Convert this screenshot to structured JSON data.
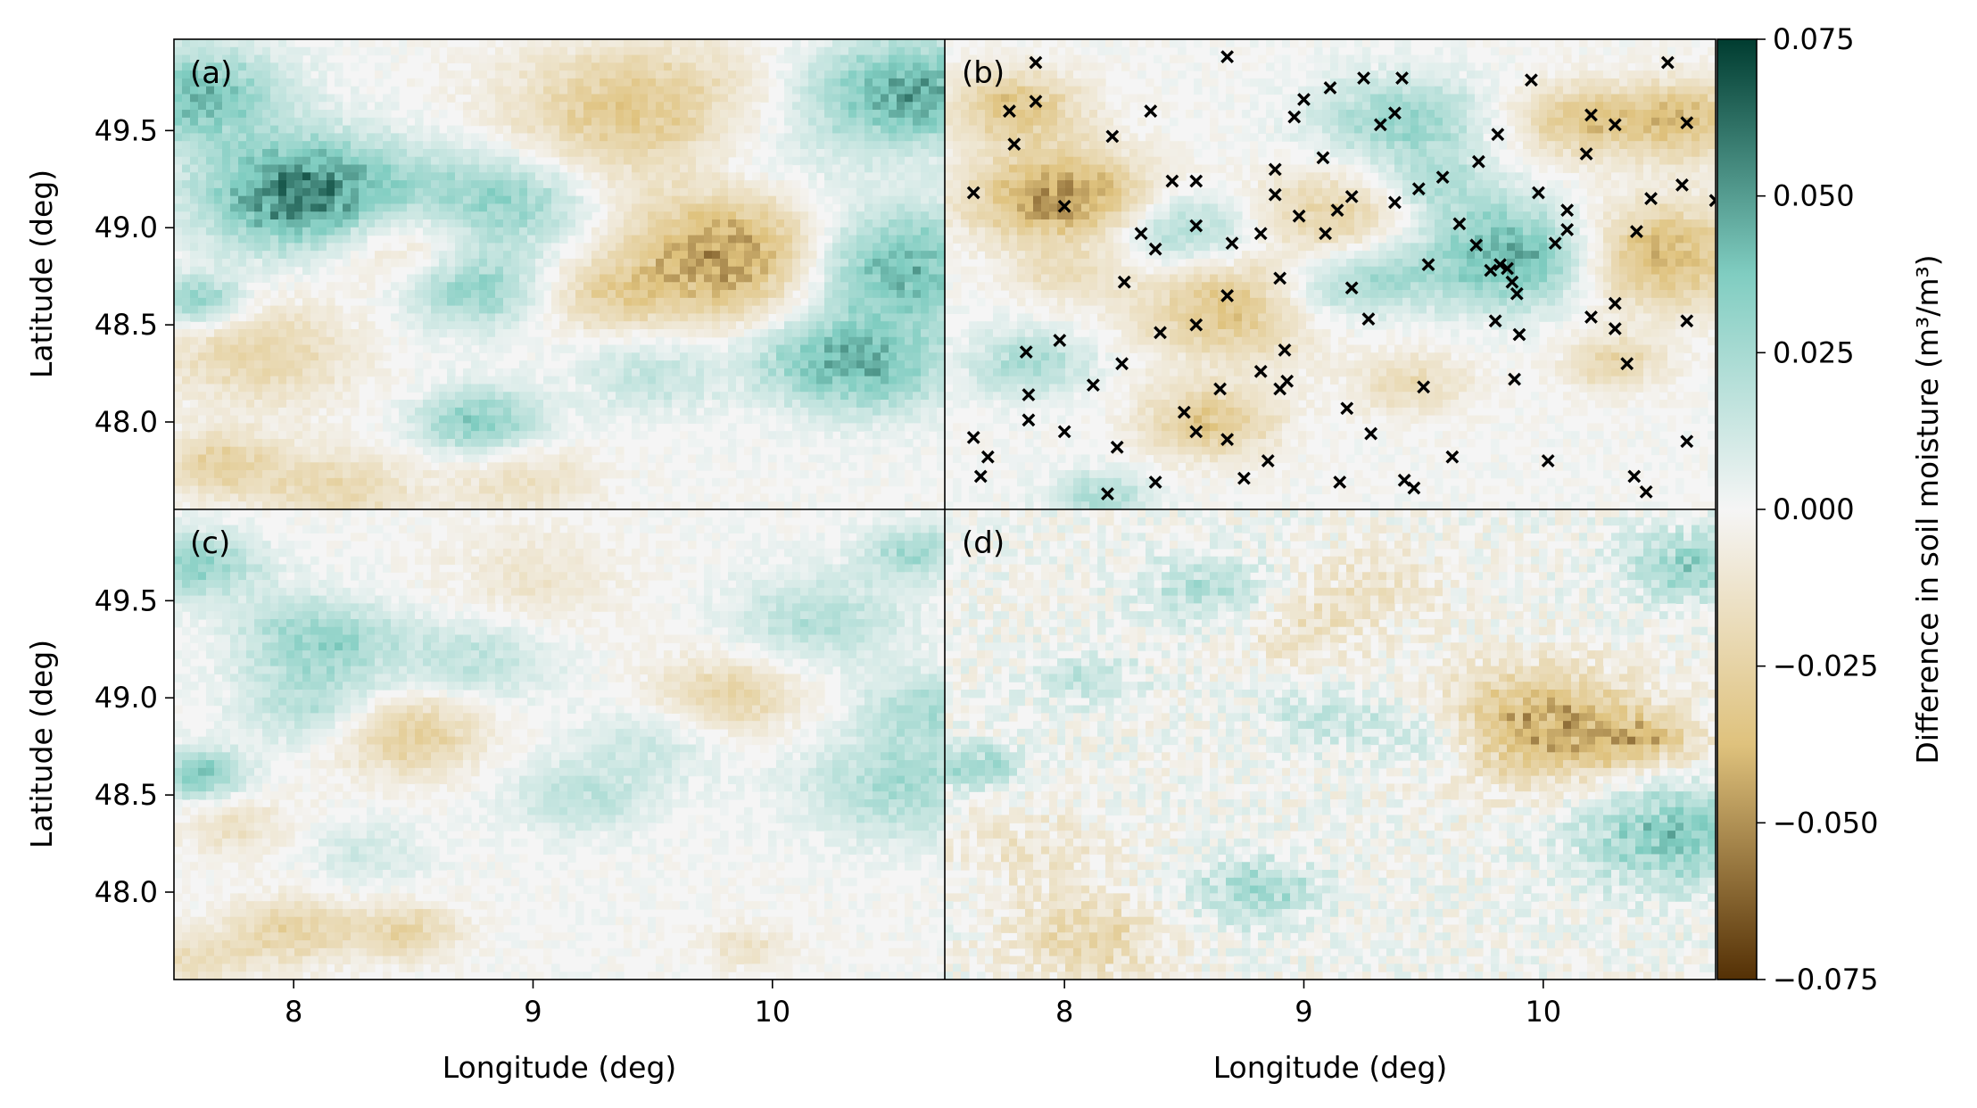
{
  "chart_data": {
    "type": "heatmap",
    "colormap": "BrBG",
    "colors": {
      "low": "#543005",
      "mid_low": "#dfc27d",
      "zero": "#f5f5f5",
      "mid_high": "#80cdc1",
      "high": "#003c30",
      "marker": "#000000"
    },
    "xlim": [
      7.5,
      10.72
    ],
    "ylim": [
      47.55,
      49.97
    ],
    "x_ticks": [
      {
        "value": 8,
        "label": "8"
      },
      {
        "value": 9,
        "label": "9"
      },
      {
        "value": 10,
        "label": "10"
      }
    ],
    "y_ticks": [
      {
        "value": 48.0,
        "label": "48.0"
      },
      {
        "value": 48.5,
        "label": "48.5"
      },
      {
        "value": 49.0,
        "label": "49.0"
      },
      {
        "value": 49.5,
        "label": "49.5"
      }
    ],
    "xlabel": "Longitude (deg)",
    "ylabel": "Latitude (deg)",
    "colorbar": {
      "label": "Difference in soil moisture (m³/m³)",
      "vmin": -0.075,
      "vmax": 0.075,
      "ticks": [
        {
          "value": 0.075,
          "label": "0.075"
        },
        {
          "value": 0.05,
          "label": "0.050"
        },
        {
          "value": 0.025,
          "label": "0.025"
        },
        {
          "value": 0.0,
          "label": "0.000"
        },
        {
          "value": -0.025,
          "label": "−0.025"
        },
        {
          "value": -0.05,
          "label": "−0.050"
        },
        {
          "value": -0.075,
          "label": "−0.075"
        }
      ]
    },
    "panels": [
      {
        "id": "a",
        "label": "(a)",
        "anomalies": [
          {
            "lon": 8.07,
            "lat": 49.16,
            "amp": 0.064,
            "r": 0.2
          },
          {
            "lon": 7.58,
            "lat": 49.68,
            "amp": 0.042,
            "r": 0.17
          },
          {
            "lon": 8.85,
            "lat": 49.12,
            "amp": 0.036,
            "r": 0.18
          },
          {
            "lon": 9.45,
            "lat": 49.58,
            "amp": -0.035,
            "r": 0.25
          },
          {
            "lon": 9.88,
            "lat": 48.86,
            "amp": -0.058,
            "r": 0.23
          },
          {
            "lon": 8.45,
            "lat": 48.95,
            "amp": -0.028,
            "r": 0.17
          },
          {
            "lon": 10.45,
            "lat": 48.8,
            "amp": 0.052,
            "r": 0.22
          },
          {
            "lon": 10.58,
            "lat": 49.7,
            "amp": 0.048,
            "r": 0.19
          },
          {
            "lon": 8.75,
            "lat": 48.68,
            "amp": 0.032,
            "r": 0.14
          },
          {
            "lon": 9.3,
            "lat": 48.65,
            "amp": -0.02,
            "r": 0.13
          },
          {
            "lon": 7.85,
            "lat": 48.35,
            "amp": -0.022,
            "r": 0.19
          },
          {
            "lon": 8.78,
            "lat": 48.0,
            "amp": 0.035,
            "r": 0.12
          },
          {
            "lon": 7.6,
            "lat": 48.62,
            "amp": 0.034,
            "r": 0.09
          },
          {
            "lon": 10.38,
            "lat": 48.28,
            "amp": 0.038,
            "r": 0.17
          },
          {
            "lon": 9.5,
            "lat": 48.25,
            "amp": 0.016,
            "r": 0.14
          },
          {
            "lon": 8.2,
            "lat": 47.65,
            "amp": -0.022,
            "r": 0.14
          },
          {
            "lon": 7.7,
            "lat": 47.78,
            "amp": -0.026,
            "r": 0.12
          },
          {
            "lon": 8.95,
            "lat": 47.7,
            "amp": -0.016,
            "r": 0.14
          },
          {
            "lon": 9.9,
            "lat": 49.35,
            "amp": 0.015,
            "r": 0.22
          },
          {
            "lon": 10.1,
            "lat": 48.35,
            "amp": 0.012,
            "r": 0.12
          }
        ],
        "markers": []
      },
      {
        "id": "b",
        "label": "(b)",
        "anomalies": [
          {
            "lon": 7.98,
            "lat": 49.16,
            "amp": -0.05,
            "r": 0.17
          },
          {
            "lon": 7.8,
            "lat": 49.62,
            "amp": -0.034,
            "r": 0.13
          },
          {
            "lon": 8.7,
            "lat": 48.58,
            "amp": -0.036,
            "r": 0.18
          },
          {
            "lon": 9.9,
            "lat": 48.85,
            "amp": 0.052,
            "r": 0.18
          },
          {
            "lon": 10.45,
            "lat": 48.85,
            "amp": -0.044,
            "r": 0.19
          },
          {
            "lon": 10.6,
            "lat": 49.55,
            "amp": -0.035,
            "r": 0.14
          },
          {
            "lon": 9.15,
            "lat": 49.08,
            "amp": -0.026,
            "r": 0.16
          },
          {
            "lon": 9.4,
            "lat": 49.55,
            "amp": 0.03,
            "r": 0.16
          },
          {
            "lon": 8.5,
            "lat": 48.98,
            "amp": 0.028,
            "r": 0.13
          },
          {
            "lon": 8.6,
            "lat": 48.0,
            "amp": -0.032,
            "r": 0.13
          },
          {
            "lon": 9.45,
            "lat": 48.2,
            "amp": -0.02,
            "r": 0.11
          },
          {
            "lon": 10.15,
            "lat": 49.55,
            "amp": -0.03,
            "r": 0.13
          },
          {
            "lon": 9.55,
            "lat": 49.2,
            "amp": 0.02,
            "r": 0.13
          },
          {
            "lon": 7.85,
            "lat": 48.3,
            "amp": 0.024,
            "r": 0.12
          },
          {
            "lon": 8.15,
            "lat": 47.62,
            "amp": 0.022,
            "r": 0.1
          },
          {
            "lon": 10.3,
            "lat": 48.3,
            "amp": -0.022,
            "r": 0.1
          },
          {
            "lon": 9.05,
            "lat": 48.65,
            "amp": 0.018,
            "r": 0.12
          },
          {
            "lon": 8.0,
            "lat": 48.75,
            "amp": -0.015,
            "r": 0.1
          },
          {
            "lon": 9.3,
            "lat": 48.75,
            "amp": 0.02,
            "r": 0.12
          }
        ],
        "markers": [
          [
            7.88,
            49.85
          ],
          [
            7.88,
            49.65
          ],
          [
            7.77,
            49.6
          ],
          [
            7.79,
            49.43
          ],
          [
            7.62,
            49.18
          ],
          [
            8.2,
            49.47
          ],
          [
            8.36,
            49.6
          ],
          [
            8.45,
            49.24
          ],
          [
            8.55,
            49.24
          ],
          [
            8.98,
            49.06
          ],
          [
            8.88,
            49.3
          ],
          [
            8.96,
            49.57
          ],
          [
            9.0,
            49.66
          ],
          [
            9.08,
            49.36
          ],
          [
            9.11,
            49.72
          ],
          [
            9.25,
            49.77
          ],
          [
            9.32,
            49.53
          ],
          [
            9.38,
            49.59
          ],
          [
            9.41,
            49.77
          ],
          [
            9.58,
            49.26
          ],
          [
            9.73,
            49.34
          ],
          [
            9.81,
            49.48
          ],
          [
            9.95,
            49.76
          ],
          [
            10.2,
            49.58
          ],
          [
            10.3,
            49.53
          ],
          [
            10.18,
            49.38
          ],
          [
            10.52,
            49.85
          ],
          [
            10.6,
            49.54
          ],
          [
            10.58,
            49.22
          ],
          [
            10.72,
            49.14
          ],
          [
            10.45,
            49.15
          ],
          [
            9.98,
            49.18
          ],
          [
            10.1,
            49.09
          ],
          [
            10.1,
            48.99
          ],
          [
            10.39,
            48.98
          ],
          [
            10.05,
            48.92
          ],
          [
            9.72,
            48.91
          ],
          [
            9.65,
            49.02
          ],
          [
            9.78,
            48.78
          ],
          [
            9.82,
            48.81
          ],
          [
            9.48,
            49.2
          ],
          [
            9.38,
            49.13
          ],
          [
            9.52,
            48.81
          ],
          [
            9.2,
            49.16
          ],
          [
            9.14,
            49.09
          ],
          [
            9.09,
            48.97
          ],
          [
            8.88,
            49.17
          ],
          [
            8.82,
            48.97
          ],
          [
            8.9,
            48.74
          ],
          [
            8.7,
            48.92
          ],
          [
            8.68,
            48.65
          ],
          [
            8.55,
            49.01
          ],
          [
            8.32,
            48.97
          ],
          [
            8.25,
            48.72
          ],
          [
            8.0,
            49.11
          ],
          [
            7.98,
            48.42
          ],
          [
            8.12,
            48.19
          ],
          [
            8.24,
            48.3
          ],
          [
            8.4,
            48.46
          ],
          [
            8.55,
            48.5
          ],
          [
            8.65,
            48.17
          ],
          [
            8.82,
            48.26
          ],
          [
            8.9,
            48.17
          ],
          [
            8.92,
            48.37
          ],
          [
            9.2,
            48.69
          ],
          [
            9.27,
            48.53
          ],
          [
            8.93,
            48.21
          ],
          [
            9.18,
            48.07
          ],
          [
            9.28,
            47.94
          ],
          [
            9.15,
            47.69
          ],
          [
            9.42,
            47.7
          ],
          [
            9.46,
            47.66
          ],
          [
            9.5,
            48.18
          ],
          [
            9.62,
            47.82
          ],
          [
            9.87,
            48.72
          ],
          [
            9.85,
            48.79
          ],
          [
            9.89,
            48.66
          ],
          [
            10.2,
            48.54
          ],
          [
            10.3,
            48.61
          ],
          [
            10.3,
            48.48
          ],
          [
            10.35,
            48.3
          ],
          [
            10.38,
            47.72
          ],
          [
            10.43,
            47.64
          ],
          [
            10.6,
            47.9
          ],
          [
            10.6,
            48.52
          ],
          [
            9.88,
            48.22
          ],
          [
            9.9,
            48.45
          ],
          [
            10.02,
            47.8
          ],
          [
            9.8,
            48.52
          ],
          [
            8.0,
            47.95
          ],
          [
            7.85,
            48.01
          ],
          [
            7.85,
            48.14
          ],
          [
            7.84,
            48.36
          ],
          [
            7.62,
            47.92
          ],
          [
            7.65,
            47.72
          ],
          [
            7.68,
            47.82
          ],
          [
            8.18,
            47.63
          ],
          [
            8.22,
            47.87
          ],
          [
            8.38,
            47.69
          ],
          [
            8.55,
            47.95
          ],
          [
            8.5,
            48.05
          ],
          [
            8.68,
            47.91
          ],
          [
            8.75,
            47.71
          ],
          [
            8.85,
            47.8
          ],
          [
            8.68,
            49.88
          ],
          [
            8.38,
            48.89
          ]
        ]
      },
      {
        "id": "c",
        "label": "(c)",
        "anomalies": [
          {
            "lon": 8.1,
            "lat": 49.3,
            "amp": 0.03,
            "r": 0.15
          },
          {
            "lon": 7.6,
            "lat": 49.68,
            "amp": 0.032,
            "r": 0.12
          },
          {
            "lon": 8.48,
            "lat": 48.82,
            "amp": -0.03,
            "r": 0.15
          },
          {
            "lon": 7.6,
            "lat": 48.6,
            "amp": 0.038,
            "r": 0.09
          },
          {
            "lon": 8.1,
            "lat": 48.95,
            "amp": 0.022,
            "r": 0.14
          },
          {
            "lon": 9.8,
            "lat": 49.0,
            "amp": -0.025,
            "r": 0.15
          },
          {
            "lon": 10.55,
            "lat": 48.55,
            "amp": 0.025,
            "r": 0.19
          },
          {
            "lon": 8.0,
            "lat": 47.8,
            "amp": -0.026,
            "r": 0.12
          },
          {
            "lon": 8.47,
            "lat": 47.8,
            "amp": -0.024,
            "r": 0.1
          },
          {
            "lon": 7.6,
            "lat": 47.65,
            "amp": -0.018,
            "r": 0.1
          },
          {
            "lon": 9.9,
            "lat": 47.72,
            "amp": -0.014,
            "r": 0.08
          },
          {
            "lon": 9.0,
            "lat": 49.6,
            "amp": -0.012,
            "r": 0.18
          },
          {
            "lon": 8.75,
            "lat": 49.2,
            "amp": 0.018,
            "r": 0.16
          },
          {
            "lon": 9.2,
            "lat": 48.5,
            "amp": 0.018,
            "r": 0.14
          },
          {
            "lon": 10.2,
            "lat": 49.4,
            "amp": 0.02,
            "r": 0.17
          },
          {
            "lon": 10.6,
            "lat": 49.75,
            "amp": 0.025,
            "r": 0.1
          },
          {
            "lon": 7.75,
            "lat": 48.35,
            "amp": -0.014,
            "r": 0.12
          },
          {
            "lon": 9.55,
            "lat": 48.8,
            "amp": 0.014,
            "r": 0.14
          },
          {
            "lon": 8.3,
            "lat": 48.2,
            "amp": 0.012,
            "r": 0.12
          },
          {
            "lon": 10.65,
            "lat": 48.95,
            "amp": 0.022,
            "r": 0.12
          }
        ],
        "markers": []
      },
      {
        "id": "d",
        "label": "(d)",
        "anomalies": [
          {
            "lon": 10.0,
            "lat": 48.85,
            "amp": -0.046,
            "r": 0.2
          },
          {
            "lon": 10.55,
            "lat": 48.3,
            "amp": 0.036,
            "r": 0.19
          },
          {
            "lon": 10.62,
            "lat": 49.68,
            "amp": 0.03,
            "r": 0.13
          },
          {
            "lon": 8.8,
            "lat": 48.0,
            "amp": 0.028,
            "r": 0.12
          },
          {
            "lon": 8.1,
            "lat": 47.75,
            "amp": -0.022,
            "r": 0.15
          },
          {
            "lon": 8.6,
            "lat": 49.55,
            "amp": 0.02,
            "r": 0.13
          },
          {
            "lon": 9.55,
            "lat": 48.8,
            "amp": 0.018,
            "r": 0.12
          },
          {
            "lon": 9.0,
            "lat": 49.35,
            "amp": -0.015,
            "r": 0.13
          },
          {
            "lon": 7.62,
            "lat": 48.65,
            "amp": 0.03,
            "r": 0.08
          },
          {
            "lon": 8.1,
            "lat": 49.1,
            "amp": 0.016,
            "r": 0.1
          },
          {
            "lon": 10.45,
            "lat": 48.78,
            "amp": -0.025,
            "r": 0.1
          },
          {
            "lon": 9.1,
            "lat": 48.9,
            "amp": 0.014,
            "r": 0.12
          },
          {
            "lon": 7.85,
            "lat": 48.2,
            "amp": -0.012,
            "r": 0.15
          },
          {
            "lon": 9.3,
            "lat": 49.6,
            "amp": -0.012,
            "r": 0.14
          }
        ],
        "markers": []
      }
    ]
  }
}
